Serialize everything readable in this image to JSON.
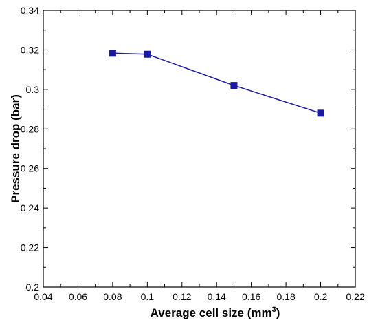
{
  "chart_data": {
    "type": "line",
    "title": "",
    "xlabel": "Average cell size (mm",
    "xlabel_superscript": "3",
    "xlabel_suffix": ")",
    "ylabel": "Pressure drop (bar)",
    "xlim": [
      0.04,
      0.22
    ],
    "ylim": [
      0.2,
      0.34
    ],
    "x_ticks": [
      "0.04",
      "0.06",
      "0.08",
      "0.1",
      "0.12",
      "0.14",
      "0.16",
      "0.18",
      "0.2",
      "0.22"
    ],
    "y_ticks": [
      "0.2",
      "0.22",
      "0.24",
      "0.26",
      "0.28",
      "0.3",
      "0.32",
      "0.34"
    ],
    "grid": false,
    "series": [
      {
        "x": [
          0.08,
          0.1,
          0.15,
          0.2
        ],
        "y": [
          0.3183,
          0.3178,
          0.302,
          0.288
        ],
        "color": "#1a1aa0",
        "marker": "square"
      }
    ]
  }
}
